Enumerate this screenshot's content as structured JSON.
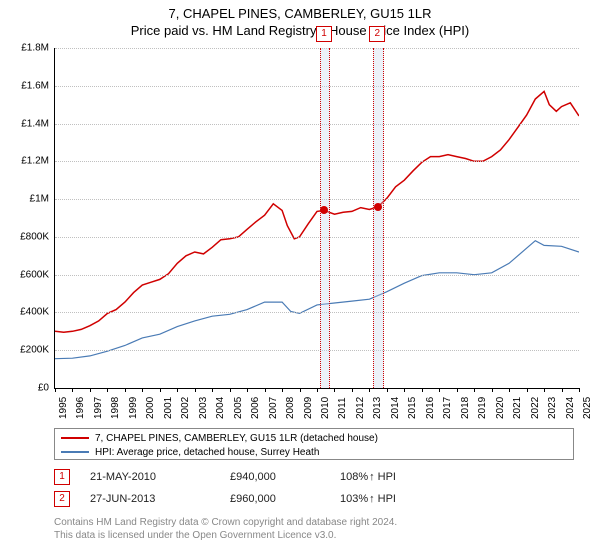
{
  "title": {
    "line1": "7, CHAPEL PINES, CAMBERLEY, GU15 1LR",
    "line2": "Price paid vs. HM Land Registry's House Price Index (HPI)"
  },
  "chart": {
    "type": "line",
    "background_color": "#ffffff",
    "grid_color": "#c0c0c0",
    "axis_color": "#000000",
    "x": {
      "min": 1995,
      "max": 2025,
      "ticks": [
        1995,
        1996,
        1997,
        1998,
        1999,
        2000,
        2001,
        2002,
        2003,
        2004,
        2005,
        2006,
        2007,
        2008,
        2009,
        2010,
        2011,
        2012,
        2013,
        2014,
        2015,
        2016,
        2017,
        2018,
        2019,
        2020,
        2021,
        2022,
        2023,
        2024,
        2025
      ],
      "label_fontsize": 10
    },
    "y": {
      "min": 0,
      "max": 1800000,
      "ticks": [
        {
          "v": 0,
          "label": "£0"
        },
        {
          "v": 200000,
          "label": "£200K"
        },
        {
          "v": 400000,
          "label": "£400K"
        },
        {
          "v": 600000,
          "label": "£600K"
        },
        {
          "v": 800000,
          "label": "£800K"
        },
        {
          "v": 1000000,
          "label": "£1M"
        },
        {
          "v": 1200000,
          "label": "£1.2M"
        },
        {
          "v": 1400000,
          "label": "£1.4M"
        },
        {
          "v": 1600000,
          "label": "£1.6M"
        },
        {
          "v": 1800000,
          "label": "£1.8M"
        }
      ],
      "label_fontsize": 10
    },
    "series": [
      {
        "name": "7, CHAPEL PINES, CAMBERLEY, GU15 1LR (detached house)",
        "color": "#d00000",
        "line_width": 1.5,
        "data": [
          [
            1995,
            300000
          ],
          [
            1995.5,
            295000
          ],
          [
            1996,
            300000
          ],
          [
            1996.5,
            310000
          ],
          [
            1997,
            330000
          ],
          [
            1997.5,
            355000
          ],
          [
            1998,
            395000
          ],
          [
            1998.5,
            415000
          ],
          [
            1999,
            455000
          ],
          [
            1999.5,
            505000
          ],
          [
            2000,
            545000
          ],
          [
            2000.5,
            560000
          ],
          [
            2001,
            575000
          ],
          [
            2001.5,
            605000
          ],
          [
            2002,
            660000
          ],
          [
            2002.5,
            700000
          ],
          [
            2003,
            720000
          ],
          [
            2003.5,
            710000
          ],
          [
            2004,
            745000
          ],
          [
            2004.5,
            785000
          ],
          [
            2005,
            790000
          ],
          [
            2005.5,
            800000
          ],
          [
            2006,
            840000
          ],
          [
            2006.5,
            880000
          ],
          [
            2007,
            915000
          ],
          [
            2007.5,
            975000
          ],
          [
            2008,
            940000
          ],
          [
            2008.3,
            860000
          ],
          [
            2008.7,
            790000
          ],
          [
            2009,
            800000
          ],
          [
            2009.5,
            870000
          ],
          [
            2010,
            935000
          ],
          [
            2010.4,
            940000
          ],
          [
            2011,
            920000
          ],
          [
            2011.5,
            930000
          ],
          [
            2012,
            935000
          ],
          [
            2012.5,
            955000
          ],
          [
            2013,
            945000
          ],
          [
            2013.5,
            960000
          ],
          [
            2014,
            1005000
          ],
          [
            2014.5,
            1065000
          ],
          [
            2015,
            1100000
          ],
          [
            2015.5,
            1150000
          ],
          [
            2016,
            1195000
          ],
          [
            2016.5,
            1225000
          ],
          [
            2017,
            1225000
          ],
          [
            2017.5,
            1235000
          ],
          [
            2018,
            1225000
          ],
          [
            2018.5,
            1215000
          ],
          [
            2019,
            1200000
          ],
          [
            2019.5,
            1200000
          ],
          [
            2020,
            1225000
          ],
          [
            2020.5,
            1260000
          ],
          [
            2021,
            1315000
          ],
          [
            2021.5,
            1380000
          ],
          [
            2022,
            1445000
          ],
          [
            2022.5,
            1530000
          ],
          [
            2023,
            1570000
          ],
          [
            2023.3,
            1500000
          ],
          [
            2023.7,
            1465000
          ],
          [
            2024,
            1490000
          ],
          [
            2024.5,
            1510000
          ],
          [
            2025,
            1440000
          ]
        ]
      },
      {
        "name": "HPI: Average price, detached house, Surrey Heath",
        "color": "#4a7bb5",
        "line_width": 1.2,
        "data": [
          [
            1995,
            155000
          ],
          [
            1996,
            158000
          ],
          [
            1997,
            170000
          ],
          [
            1998,
            195000
          ],
          [
            1999,
            225000
          ],
          [
            2000,
            265000
          ],
          [
            2001,
            285000
          ],
          [
            2002,
            325000
          ],
          [
            2003,
            355000
          ],
          [
            2004,
            380000
          ],
          [
            2005,
            390000
          ],
          [
            2006,
            415000
          ],
          [
            2007,
            455000
          ],
          [
            2008,
            455000
          ],
          [
            2008.5,
            405000
          ],
          [
            2009,
            395000
          ],
          [
            2010,
            440000
          ],
          [
            2011,
            450000
          ],
          [
            2012,
            460000
          ],
          [
            2013,
            470000
          ],
          [
            2014,
            510000
          ],
          [
            2015,
            555000
          ],
          [
            2016,
            595000
          ],
          [
            2017,
            610000
          ],
          [
            2018,
            610000
          ],
          [
            2019,
            600000
          ],
          [
            2020,
            610000
          ],
          [
            2021,
            660000
          ],
          [
            2022,
            740000
          ],
          [
            2022.5,
            780000
          ],
          [
            2023,
            755000
          ],
          [
            2024,
            750000
          ],
          [
            2025,
            720000
          ]
        ]
      }
    ],
    "sale_bands": [
      {
        "start": 2010.15,
        "end": 2010.65,
        "marker": "1",
        "dot_year": 2010.39,
        "dot_value": 940000,
        "dot_color": "#d00000"
      },
      {
        "start": 2013.2,
        "end": 2013.7,
        "marker": "2",
        "dot_year": 2013.49,
        "dot_value": 960000,
        "dot_color": "#d00000"
      }
    ],
    "marker_box": {
      "border_color": "#d00000",
      "text_color": "#d00000",
      "size": 14
    }
  },
  "legend": {
    "items": [
      {
        "color": "#d00000",
        "label": "7, CHAPEL PINES, CAMBERLEY, GU15 1LR (detached house)"
      },
      {
        "color": "#4a7bb5",
        "label": "HPI: Average price, detached house, Surrey Heath"
      }
    ],
    "border_color": "#888888",
    "fontsize": 10
  },
  "sales": [
    {
      "marker": "1",
      "date": "21-MAY-2010",
      "price": "£940,000",
      "hpi_pct": "108%",
      "hpi_dir": "up",
      "hpi_suffix": "HPI"
    },
    {
      "marker": "2",
      "date": "27-JUN-2013",
      "price": "£960,000",
      "hpi_pct": "103%",
      "hpi_dir": "up",
      "hpi_suffix": "HPI"
    }
  ],
  "footer": {
    "line1": "Contains HM Land Registry data © Crown copyright and database right 2024.",
    "line2": "This data is licensed under the Open Government Licence v3.0.",
    "color": "#888888",
    "fontsize": 10
  }
}
